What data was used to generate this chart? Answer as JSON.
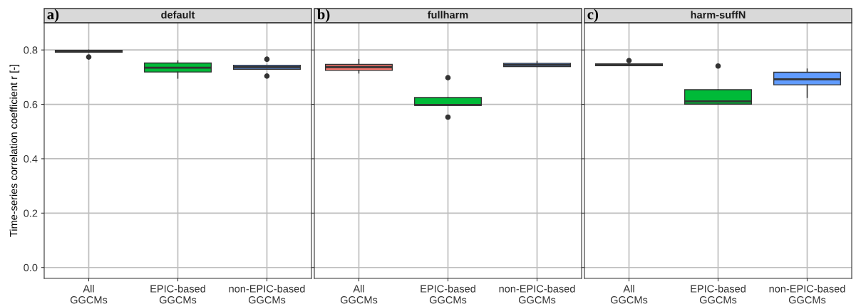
{
  "chart_data": [
    {
      "type": "box",
      "title": "default",
      "annotations": [
        "a)"
      ],
      "ylabel": "Time-series correlation coefficient r [-]",
      "categories": [
        "All\nGGCMs",
        "EPIC-based\nGGCMs",
        "non-EPIC-based\nGGCMs"
      ],
      "colors": [
        "#f8766d",
        "#00ba38",
        "#619cff"
      ],
      "ylim": [
        -0.04,
        0.9
      ],
      "yticks": [
        {
          "value": 0,
          "label": "0.0"
        },
        {
          "value": 0.2,
          "label": "0.2"
        },
        {
          "value": 0.4,
          "label": "0.4"
        },
        {
          "value": 0.6,
          "label": "0.6"
        },
        {
          "value": 0.8,
          "label": "0.8"
        }
      ],
      "grid": true,
      "boxes": [
        {
          "low": 0.791,
          "q1": 0.792,
          "median": 0.796,
          "q3": 0.799,
          "high": 0.8,
          "outliers": [
            0.774
          ]
        },
        {
          "low": 0.696,
          "q1": 0.719,
          "median": 0.735,
          "q3": 0.752,
          "high": 0.76
        },
        {
          "low": 0.729,
          "q1": 0.729,
          "median": 0.737,
          "q3": 0.744,
          "high": 0.744,
          "outliers": [
            0.766,
            0.704
          ]
        }
      ]
    },
    {
      "type": "box",
      "title": "fullharm",
      "annotations": [
        "b)"
      ],
      "categories": [
        "All\nGGCMs",
        "EPIC-based\nGGCMs",
        "non-EPIC-based\nGGCMs"
      ],
      "colors": [
        "#f8766d",
        "#00ba38",
        "#619cff"
      ],
      "ylim": [
        -0.04,
        0.9
      ],
      "yticks": [
        {
          "value": 0,
          "label": null
        },
        {
          "value": 0.2,
          "label": null
        },
        {
          "value": 0.4,
          "label": null
        },
        {
          "value": 0.6,
          "label": null
        },
        {
          "value": 0.8,
          "label": null
        }
      ],
      "grid": true,
      "tick_labels": "x",
      "boxes": [
        {
          "low": 0.715,
          "q1": 0.725,
          "median": 0.737,
          "q3": 0.747,
          "high": 0.765
        },
        {
          "low": 0.596,
          "q1": 0.596,
          "median": 0.598,
          "q3": 0.625,
          "high": 0.625,
          "outliers": [
            0.698,
            0.553
          ]
        },
        {
          "low": 0.739,
          "q1": 0.739,
          "median": 0.745,
          "q3": 0.751,
          "high": 0.758
        }
      ]
    },
    {
      "type": "box",
      "title": "harm-suffN",
      "annotations": [
        "c)"
      ],
      "categories": [
        "All\nGGCMs",
        "EPIC-based\nGGCMs",
        "non-EPIC-based\nGGCMs"
      ],
      "colors": [
        "#f8766d",
        "#00ba38",
        "#619cff"
      ],
      "ylim": [
        -0.04,
        0.9
      ],
      "yticks": [
        {
          "value": 0,
          "label": null
        },
        {
          "value": 0.2,
          "label": null
        },
        {
          "value": 0.4,
          "label": null
        },
        {
          "value": 0.6,
          "label": null
        },
        {
          "value": 0.8,
          "label": null
        }
      ],
      "grid": true,
      "tick_labels": "x",
      "boxes": [
        {
          "low": 0.742,
          "q1": 0.742,
          "median": 0.746,
          "q3": 0.749,
          "high": 0.749,
          "outliers": [
            0.761
          ]
        },
        {
          "low": 0.601,
          "q1": 0.601,
          "median": 0.611,
          "q3": 0.654,
          "high": 0.654,
          "outliers": [
            0.741
          ]
        },
        {
          "low": 0.625,
          "q1": 0.672,
          "median": 0.692,
          "q3": 0.718,
          "high": 0.73
        }
      ]
    }
  ]
}
